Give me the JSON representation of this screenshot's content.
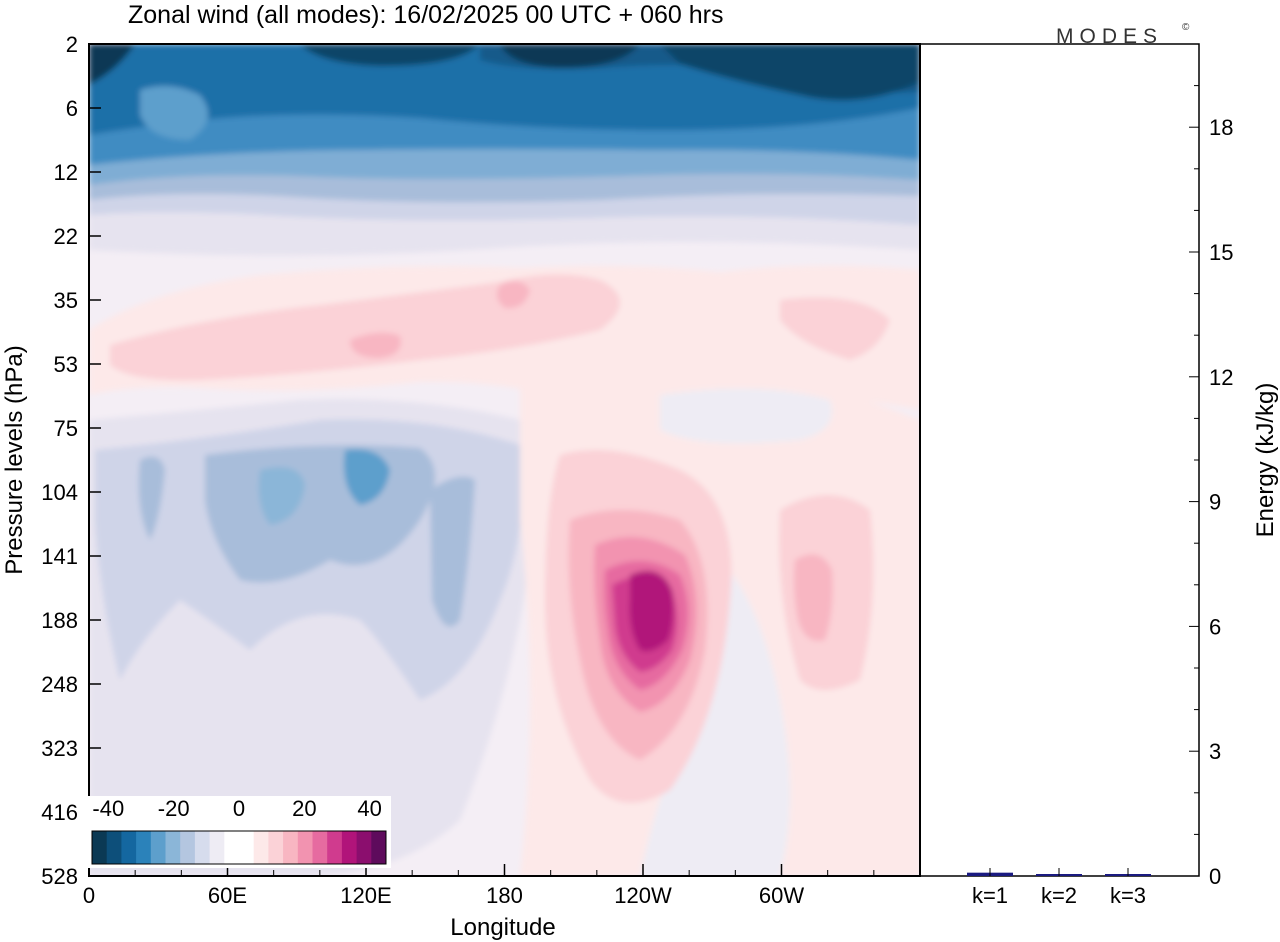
{
  "title": "Zonal wind (all modes):  16/02/2025  00 UTC  + 060 hrs",
  "brand": "MODES",
  "brand_mark": "©",
  "colors": {
    "negative": [
      "#0b3954",
      "#0d4f7a",
      "#1467a0",
      "#2b82ba",
      "#5d9fcc",
      "#8bb6d8",
      "#b4c6e0",
      "#d6dced",
      "#eeecf4"
    ],
    "neutral": "#ffffff",
    "positive": [
      "#fde9e9",
      "#fbd2d7",
      "#f8b6c2",
      "#f293b0",
      "#e66ba0",
      "#d03b8e",
      "#b1147a",
      "#8b0e6e",
      "#5e0b5c"
    ]
  },
  "chart_data": [
    {
      "type": "heatmap",
      "variable": "Zonal wind",
      "xlabel": "Longitude",
      "ylabel": "Pressure levels (hPa)",
      "xticks": [
        "0",
        "60E",
        "120E",
        "180",
        "120W",
        "60W"
      ],
      "yticks": [
        "2",
        "6",
        "12",
        "22",
        "35",
        "53",
        "75",
        "104",
        "141",
        "188",
        "248",
        "323",
        "416",
        "528"
      ],
      "colorbar": {
        "ticks": [
          "-40",
          "-20",
          "0",
          "20",
          "40"
        ],
        "range": [
          -45,
          45
        ],
        "step": 5
      },
      "features": [
        {
          "description": "easterly (negative) winds in upper levels",
          "levels": "2-12 hPa",
          "approx_value": -40
        },
        {
          "description": "weak westerlies",
          "levels": "35-53 hPa",
          "approx_value": 10
        },
        {
          "description": "weak easterlies",
          "longitudes": "0-180",
          "levels": "75-323 hPa",
          "approx_value": -15
        },
        {
          "description": "jet maximum",
          "longitude": "~120W",
          "level_hPa": 160,
          "approx_value": 35
        },
        {
          "description": "secondary positive maximum",
          "longitude": "~60W",
          "level_hPa": 170,
          "approx_value": 12
        }
      ]
    },
    {
      "type": "bar",
      "categories": [
        "k=1",
        "k=2",
        "k=3"
      ],
      "values": [
        0.08,
        0.02,
        0.01
      ],
      "ylabel": "Energy (kJ/kg)",
      "ylim": [
        0,
        20
      ],
      "yticks": [
        "0",
        "3",
        "6",
        "9",
        "12",
        "15",
        "18"
      ]
    }
  ]
}
